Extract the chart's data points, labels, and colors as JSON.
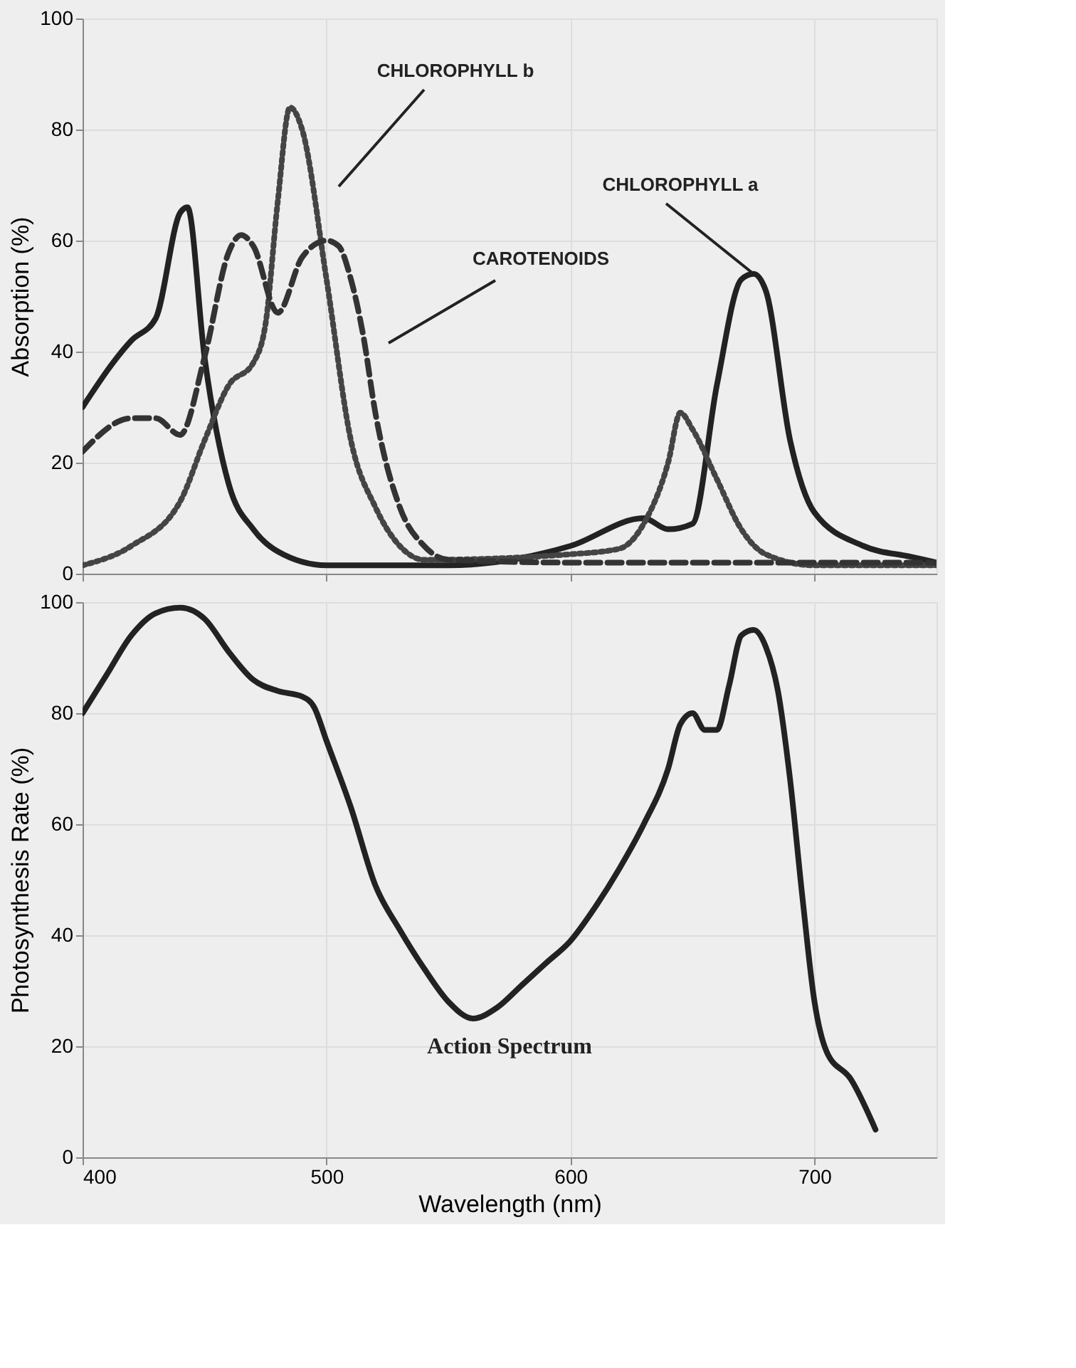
{
  "chart_data": [
    {
      "type": "line",
      "ylabel": "Absorption (%)",
      "xlim": [
        400,
        750
      ],
      "xticks": [
        400,
        500,
        600,
        700
      ],
      "ylim": [
        0,
        100
      ],
      "yticks": [
        0,
        20,
        40,
        60,
        80,
        100
      ],
      "grid": true,
      "tick_labels": "y",
      "series": [
        {
          "color": "#222222",
          "line_style": "solid",
          "x": [
            400,
            420,
            430,
            440,
            443,
            450,
            460,
            470,
            480,
            500,
            550,
            600,
            630,
            640,
            650,
            660,
            670,
            675,
            680,
            690,
            700,
            720,
            740,
            750
          ],
          "values": [
            30,
            42,
            46,
            65,
            66,
            39,
            16,
            8,
            4,
            1.5,
            1.5,
            5,
            10,
            8,
            9,
            34,
            53,
            54,
            51,
            24,
            11,
            5,
            3,
            2
          ]
        },
        {
          "color": "#444444",
          "line_style": "dotted",
          "x": [
            400,
            420,
            440,
            450,
            460,
            470,
            475,
            480,
            485,
            490,
            500,
            510,
            520,
            530,
            540,
            600,
            620,
            630,
            640,
            645,
            650,
            660,
            670,
            680,
            700,
            750
          ],
          "values": [
            1.5,
            5,
            13,
            24,
            34,
            38,
            45,
            67,
            84,
            80,
            53,
            24,
            12,
            5,
            2.5,
            3.5,
            4.5,
            9,
            20,
            29,
            26,
            17,
            8,
            3.5,
            1.5,
            1.5
          ]
        },
        {
          "color": "#333333",
          "line_style": "dashed",
          "x": [
            400,
            420,
            430,
            440,
            450,
            460,
            465,
            470,
            480,
            490,
            500,
            505,
            510,
            515,
            520,
            530,
            540,
            550,
            600,
            750
          ],
          "values": [
            22,
            28,
            28,
            25,
            39,
            58,
            61,
            59,
            47,
            57,
            60,
            59,
            53,
            43,
            29,
            12,
            5,
            2.5,
            2,
            2
          ]
        }
      ],
      "annotations": [
        "CHLOROPHYLL b",
        "CAROTENOIDS",
        {
          "text": "CHLOROPHYLL a",
          "x": 675,
          "y": 54
        }
      ]
    },
    {
      "type": "line",
      "xlabel": "Wavelength (nm)",
      "ylabel": "Photosynthesis Rate (%)",
      "xlim": [
        400,
        750
      ],
      "xticks": [
        400,
        500,
        600,
        700
      ],
      "ylim": [
        0,
        100
      ],
      "yticks": [
        0,
        20,
        40,
        60,
        80,
        100
      ],
      "grid": true,
      "series": [
        {
          "color": "#222222",
          "line_style": "solid",
          "x": [
            400,
            410,
            420,
            430,
            440,
            450,
            460,
            470,
            480,
            490,
            495,
            500,
            510,
            520,
            530,
            540,
            550,
            560,
            570,
            580,
            590,
            600,
            610,
            620,
            630,
            640,
            645,
            650,
            655,
            660,
            665,
            670,
            675,
            680,
            685,
            690,
            695,
            700,
            705,
            715,
            725
          ],
          "values": [
            80,
            87,
            94,
            98,
            99,
            97,
            91,
            86,
            84,
            83,
            81,
            75,
            63,
            49,
            41,
            34,
            28,
            25,
            27,
            31,
            35,
            39,
            45,
            52,
            60,
            70,
            78,
            80,
            77,
            77,
            85,
            94,
            95,
            92,
            84,
            68,
            47,
            28,
            19,
            14,
            5
          ]
        }
      ],
      "annotations": [
        "Action Spectrum"
      ]
    }
  ]
}
